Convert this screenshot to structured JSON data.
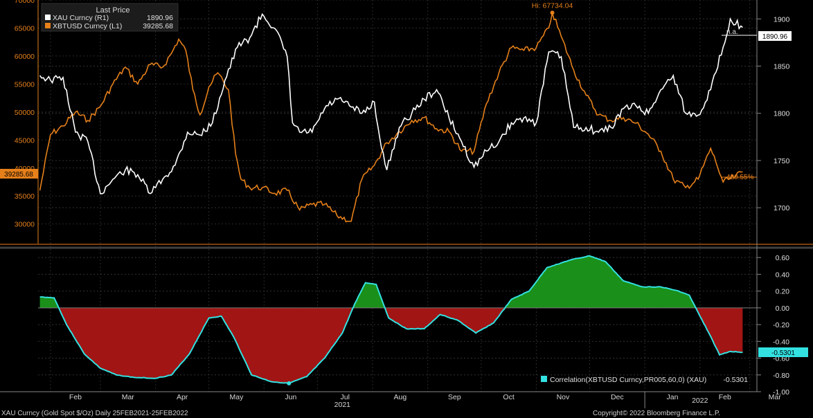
{
  "chart_data": [
    {
      "type": "line",
      "x_range": [
        "2021-01-25",
        "2022-03-05"
      ],
      "month_ticks": [
        "Feb",
        "Mar",
        "Apr",
        "May",
        "Jun",
        "Jul",
        "Aug",
        "Sep",
        "Oct",
        "Nov",
        "Dec",
        "Jan",
        "Feb",
        "Mar"
      ],
      "year_labels": [
        "2021",
        "2022"
      ],
      "left_axis": {
        "ylim": [
          26500,
          70000
        ],
        "ticks": [
          "70000",
          "65000",
          "60000",
          "55000",
          "50000",
          "45000",
          "40000",
          "35000",
          "30000"
        ],
        "color": "#e6801a"
      },
      "right_axis": {
        "ylim": [
          1662,
          1920
        ],
        "ticks": [
          "1900",
          "1850",
          "1800",
          "1750",
          "1700"
        ],
        "color": "#ffffff"
      },
      "legend": {
        "title": "Last Price",
        "entries": [
          {
            "name": "XAU Curncy  (R1)",
            "value": "1890.96",
            "color": "#ffffff"
          },
          {
            "name": "XBTUSD Curncy  (L1)",
            "value": "39285.68",
            "color": "#e6801a"
          }
        ]
      },
      "annotations": {
        "high": "Hi: 67734.04",
        "gold_tag": "1890.96",
        "gold_note": "n.a.",
        "btc_tag": "39285.68",
        "btc_pct": "420.55%"
      },
      "series": [
        {
          "name": "XBTUSD Curncy  (L1)",
          "axis": "left",
          "color": "#e6801a",
          "x": [
            "2021-01-26",
            "2021-02-01",
            "2021-02-08",
            "2021-02-15",
            "2021-02-22",
            "2021-03-01",
            "2021-03-08",
            "2021-03-15",
            "2021-03-22",
            "2021-03-29",
            "2021-04-05",
            "2021-04-10",
            "2021-04-14",
            "2021-04-18",
            "2021-04-22",
            "2021-04-26",
            "2021-05-01",
            "2021-05-06",
            "2021-05-12",
            "2021-05-16",
            "2021-05-19",
            "2021-05-24",
            "2021-05-31",
            "2021-06-07",
            "2021-06-14",
            "2021-06-21",
            "2021-06-28",
            "2021-07-05",
            "2021-07-12",
            "2021-07-20",
            "2021-07-26",
            "2021-08-02",
            "2021-08-09",
            "2021-08-16",
            "2021-08-23",
            "2021-08-30",
            "2021-09-06",
            "2021-09-13",
            "2021-09-20",
            "2021-09-27",
            "2021-10-04",
            "2021-10-11",
            "2021-10-18",
            "2021-10-25",
            "2021-11-01",
            "2021-11-08",
            "2021-11-10",
            "2021-11-15",
            "2021-11-22",
            "2021-11-29",
            "2021-12-06",
            "2021-12-13",
            "2021-12-20",
            "2021-12-27",
            "2022-01-03",
            "2022-01-10",
            "2022-01-17",
            "2022-01-24",
            "2022-01-31",
            "2022-02-07",
            "2022-02-10",
            "2022-02-14",
            "2022-02-21",
            "2022-02-25"
          ],
          "values": [
            36000,
            46000,
            47500,
            50000,
            48500,
            51000,
            55000,
            58000,
            55000,
            58500,
            58000,
            60500,
            63000,
            61000,
            54000,
            49500,
            54500,
            57000,
            54000,
            42500,
            38000,
            36500,
            36500,
            35500,
            36000,
            32500,
            33500,
            33500,
            31500,
            30500,
            38000,
            40500,
            44500,
            46500,
            48500,
            49000,
            47000,
            46500,
            43000,
            43000,
            51500,
            57000,
            61500,
            61000,
            61500,
            65000,
            67734,
            63500,
            57500,
            53000,
            49500,
            48500,
            49000,
            48000,
            46000,
            43000,
            38000,
            36500,
            38000,
            43500,
            41000,
            37500,
            38500,
            39285.68
          ]
        },
        {
          "name": "XAU Curncy  (R1)",
          "axis": "right",
          "color": "#ffffff",
          "x": [
            "2021-01-26",
            "2021-02-01",
            "2021-02-08",
            "2021-02-15",
            "2021-02-22",
            "2021-03-01",
            "2021-03-08",
            "2021-03-15",
            "2021-03-22",
            "2021-03-29",
            "2021-04-05",
            "2021-04-12",
            "2021-04-19",
            "2021-04-26",
            "2021-05-03",
            "2021-05-10",
            "2021-05-17",
            "2021-05-24",
            "2021-05-31",
            "2021-06-07",
            "2021-06-14",
            "2021-06-17",
            "2021-06-21",
            "2021-06-28",
            "2021-07-05",
            "2021-07-12",
            "2021-07-19",
            "2021-07-26",
            "2021-08-02",
            "2021-08-06",
            "2021-08-09",
            "2021-08-16",
            "2021-08-23",
            "2021-08-30",
            "2021-09-06",
            "2021-09-13",
            "2021-09-20",
            "2021-09-27",
            "2021-10-04",
            "2021-10-11",
            "2021-10-18",
            "2021-10-25",
            "2021-11-01",
            "2021-11-08",
            "2021-11-15",
            "2021-11-22",
            "2021-11-29",
            "2021-12-06",
            "2021-12-13",
            "2021-12-20",
            "2021-12-27",
            "2022-01-03",
            "2022-01-10",
            "2022-01-17",
            "2022-01-24",
            "2022-01-31",
            "2022-02-07",
            "2022-02-14",
            "2022-02-18",
            "2022-02-25"
          ],
          "values": [
            1840,
            1835,
            1838,
            1780,
            1770,
            1715,
            1730,
            1740,
            1735,
            1715,
            1730,
            1745,
            1780,
            1777,
            1790,
            1835,
            1870,
            1880,
            1905,
            1890,
            1860,
            1790,
            1780,
            1780,
            1805,
            1815,
            1808,
            1800,
            1812,
            1763,
            1740,
            1785,
            1800,
            1815,
            1825,
            1795,
            1770,
            1743,
            1760,
            1770,
            1790,
            1795,
            1790,
            1865,
            1860,
            1785,
            1785,
            1780,
            1785,
            1805,
            1808,
            1800,
            1825,
            1840,
            1800,
            1798,
            1825,
            1870,
            1900,
            1890.96
          ]
        }
      ]
    },
    {
      "type": "area",
      "ylim": [
        -1.0,
        0.7
      ],
      "ticks": [
        "0.60",
        "0.40",
        "0.20",
        "0.00",
        "-0.20",
        "-0.40",
        "-0.60",
        "-0.80",
        "-1.00"
      ],
      "series": [
        {
          "name": "Correlation(XBTUSD Curncy,PR005,60,0) (XAU)",
          "color": "#33e1e1",
          "last_value": "-0.5301",
          "x": [
            "2021-01-26",
            "2021-02-03",
            "2021-02-10",
            "2021-02-20",
            "2021-03-01",
            "2021-03-10",
            "2021-03-20",
            "2021-04-01",
            "2021-04-10",
            "2021-04-20",
            "2021-05-01",
            "2021-05-08",
            "2021-05-15",
            "2021-05-25",
            "2021-06-05",
            "2021-06-15",
            "2021-06-25",
            "2021-07-05",
            "2021-07-15",
            "2021-07-22",
            "2021-07-28",
            "2021-08-03",
            "2021-08-10",
            "2021-08-20",
            "2021-08-30",
            "2021-09-08",
            "2021-09-18",
            "2021-09-28",
            "2021-10-08",
            "2021-10-18",
            "2021-10-28",
            "2021-11-07",
            "2021-11-20",
            "2021-12-01",
            "2021-12-10",
            "2021-12-20",
            "2021-12-31",
            "2022-01-10",
            "2022-01-20",
            "2022-01-26",
            "2022-02-01",
            "2022-02-06",
            "2022-02-12",
            "2022-02-18",
            "2022-02-25"
          ],
          "values": [
            0.13,
            0.12,
            -0.2,
            -0.55,
            -0.72,
            -0.8,
            -0.83,
            -0.84,
            -0.8,
            -0.55,
            -0.12,
            -0.1,
            -0.35,
            -0.8,
            -0.88,
            -0.9,
            -0.82,
            -0.6,
            -0.3,
            0.05,
            0.3,
            0.28,
            -0.12,
            -0.25,
            -0.25,
            -0.08,
            -0.15,
            -0.3,
            -0.18,
            0.1,
            0.2,
            0.48,
            0.57,
            0.62,
            0.55,
            0.32,
            0.25,
            0.25,
            0.2,
            0.15,
            -0.1,
            -0.3,
            -0.56,
            -0.52,
            -0.53
          ]
        }
      ]
    }
  ],
  "footer": {
    "left": "XAU Curncy (Gold Spot  $/Oz)  Daily 25FEB2021-25FEB2022",
    "right": "Copyright© 2022 Bloomberg Finance L.P."
  }
}
